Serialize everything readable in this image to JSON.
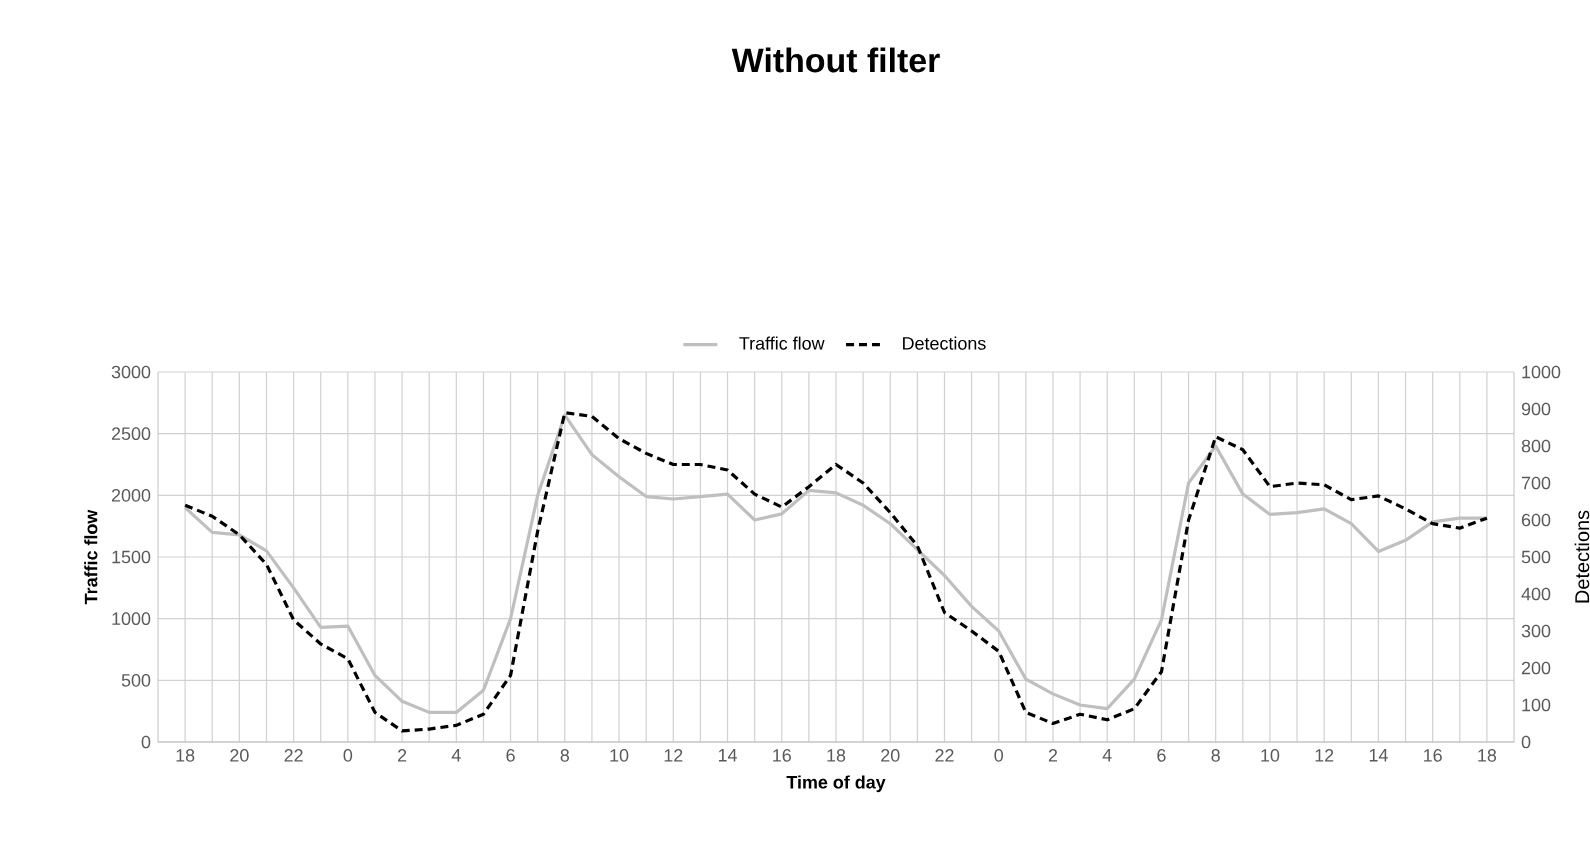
{
  "chart_data": {
    "type": "line",
    "title": "Without filter",
    "xlabel": "Time of day",
    "ylabel": "Traffic flow",
    "y2label": "Detections",
    "categories": [
      "18",
      null,
      "20",
      null,
      "22",
      null,
      "0",
      null,
      "2",
      null,
      "4",
      null,
      "6",
      null,
      "8",
      null,
      "10",
      null,
      "12",
      null,
      "14",
      null,
      "16",
      null,
      "18",
      null,
      "20",
      null,
      "22",
      null,
      "0",
      null,
      "2",
      null,
      "4",
      null,
      "6",
      null,
      "8",
      null,
      "10",
      null,
      "12",
      null,
      "14",
      null,
      "16",
      null,
      "18"
    ],
    "series": [
      {
        "name": "Traffic flow",
        "color": "#bfbfbf",
        "line_style": "solid",
        "values": [
          1900,
          1700,
          1680,
          1550,
          1250,
          930,
          940,
          540,
          330,
          240,
          240,
          420,
          1000,
          2000,
          2650,
          2330,
          2150,
          1990,
          1970,
          1990,
          2010,
          1800,
          1850,
          2040,
          2020,
          1920,
          1770,
          1560,
          1350,
          1100,
          900,
          510,
          390,
          300,
          270,
          510,
          990,
          2100,
          2400,
          2010,
          1845,
          1860,
          1890,
          1770,
          1545,
          1635,
          1785,
          1815,
          1815
        ]
      },
      {
        "name": "Detections",
        "color": "#000000",
        "line_style": "dashed",
        "axis": "y2",
        "values": [
          640,
          610,
          560,
          480,
          330,
          265,
          225,
          80,
          30,
          35,
          45,
          75,
          180,
          570,
          890,
          880,
          820,
          780,
          750,
          750,
          735,
          670,
          635,
          690,
          750,
          700,
          620,
          530,
          350,
          300,
          245,
          80,
          50,
          75,
          60,
          90,
          190,
          600,
          825,
          790,
          690,
          700,
          695,
          655,
          665,
          630,
          590,
          578,
          605
        ]
      }
    ],
    "ylim": [
      0,
      3000
    ],
    "yticks": [
      0,
      500,
      1000,
      1500,
      2000,
      2500,
      3000
    ],
    "y2lim": [
      0,
      1000
    ],
    "y2ticks": [
      0,
      100,
      200,
      300,
      400,
      500,
      600,
      700,
      800,
      900,
      1000
    ],
    "grid": true,
    "legend": "top"
  }
}
